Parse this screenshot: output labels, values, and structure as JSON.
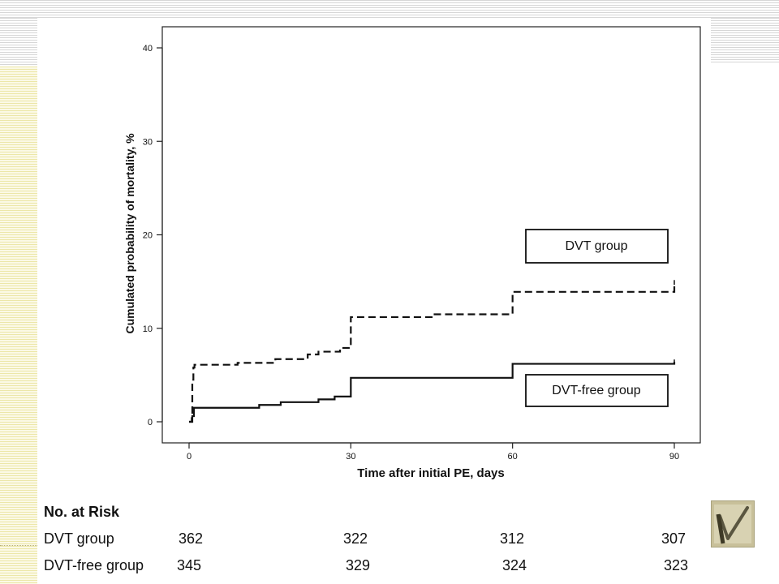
{
  "chart_data": {
    "type": "line",
    "step": true,
    "title": "",
    "xlabel": "Time after initial PE, days",
    "ylabel": "Cumulated probability of mortality, %",
    "xlim": [
      0,
      90
    ],
    "ylim": [
      0,
      40
    ],
    "xticks": [
      0,
      30,
      60,
      90
    ],
    "yticks": [
      0,
      10,
      20,
      30,
      40
    ],
    "grid": false,
    "series": [
      {
        "name": "DVT group",
        "style": "dashed",
        "color": "#111111",
        "x": [
          0,
          0.5,
          0.6,
          0.8,
          1,
          9,
          16,
          22,
          24,
          28,
          30,
          45,
          60,
          90
        ],
        "y": [
          0,
          0.8,
          4.5,
          5.8,
          6.1,
          6.3,
          6.7,
          7.2,
          7.5,
          7.9,
          11.2,
          11.5,
          13.9,
          14.9
        ]
      },
      {
        "name": "DVT-free group",
        "style": "solid",
        "color": "#111111",
        "x": [
          0,
          0.6,
          0.9,
          13,
          17,
          24,
          27,
          30,
          60,
          90
        ],
        "y": [
          0,
          0.6,
          1.5,
          1.8,
          2.1,
          2.4,
          2.7,
          4.7,
          6.2,
          6.4
        ]
      }
    ],
    "legend": [
      {
        "label": "DVT group",
        "placement": "upper-right"
      },
      {
        "label": "DVT-free group",
        "placement": "lower-right"
      }
    ]
  },
  "risk_table": {
    "title": "No. at Risk",
    "rows": [
      {
        "label": "DVT group",
        "values": [
          "362",
          "322",
          "312",
          "307"
        ]
      },
      {
        "label": "DVT-free group",
        "values": [
          "345",
          "329",
          "324",
          "323"
        ]
      }
    ]
  },
  "logo": {
    "icon": "check-mark-logo-icon"
  }
}
